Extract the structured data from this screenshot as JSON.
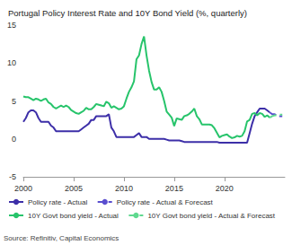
{
  "chart_data": {
    "type": "line",
    "title": "Portugal Policy Interest Rate and 10Y Bond Yield (%, quarterly)",
    "source": "Source: Refinitiv, Capital Economics",
    "legend": "bottom",
    "grid": false,
    "xlim": [
      2000,
      2026
    ],
    "xticks": [
      2000,
      2005,
      2010,
      2015,
      2020
    ],
    "ylim": [
      -5,
      15
    ],
    "yticks": [
      -5,
      0,
      5,
      10,
      15
    ],
    "x": [
      2000,
      2000.25,
      2000.5,
      2000.75,
      2001,
      2001.25,
      2001.5,
      2001.75,
      2002,
      2002.25,
      2002.5,
      2002.75,
      2003,
      2003.25,
      2003.5,
      2003.75,
      2004,
      2004.25,
      2004.5,
      2004.75,
      2005,
      2005.25,
      2005.5,
      2005.75,
      2006,
      2006.25,
      2006.5,
      2006.75,
      2007,
      2007.25,
      2007.5,
      2007.75,
      2008,
      2008.25,
      2008.5,
      2008.75,
      2009,
      2009.25,
      2009.5,
      2009.75,
      2010,
      2010.25,
      2010.5,
      2010.75,
      2011,
      2011.25,
      2011.5,
      2011.75,
      2012,
      2012.25,
      2012.5,
      2012.75,
      2013,
      2013.25,
      2013.5,
      2013.75,
      2014,
      2014.25,
      2014.5,
      2014.75,
      2015,
      2015.25,
      2015.5,
      2015.75,
      2016,
      2016.25,
      2016.5,
      2016.75,
      2017,
      2017.25,
      2017.5,
      2017.75,
      2018,
      2018.25,
      2018.5,
      2018.75,
      2019,
      2019.25,
      2019.5,
      2019.75,
      2020,
      2020.25,
      2020.5,
      2020.75,
      2021,
      2021.25,
      2021.5,
      2021.75,
      2022,
      2022.25,
      2022.5,
      2022.75,
      2023,
      2023.25,
      2023.5,
      2023.75,
      2024,
      2024.25,
      2024.5,
      2024.75,
      2025,
      2025.25,
      2025.5,
      2025.75
    ],
    "series": [
      {
        "name": "Policy rate - Actual",
        "color": "#3d2fa8",
        "line_style": "solid",
        "values": [
          2.25,
          2.75,
          3.5,
          3.75,
          3.75,
          3.5,
          2.75,
          2.25,
          2.25,
          2.25,
          2.25,
          1.75,
          1.5,
          1.0,
          1.0,
          1.0,
          1.0,
          1.0,
          1.0,
          1.0,
          1.0,
          1.0,
          1.0,
          1.25,
          1.5,
          1.75,
          2.0,
          2.5,
          2.5,
          3.0,
          3.0,
          3.0,
          3.0,
          3.0,
          3.25,
          1.5,
          1.0,
          0.25,
          0.25,
          0.25,
          0.25,
          0.25,
          0.25,
          0.25,
          0.25,
          0.5,
          0.75,
          0.25,
          0.25,
          0.25,
          0,
          0,
          0,
          0,
          0,
          0,
          0,
          -0.1,
          -0.2,
          -0.2,
          -0.2,
          -0.2,
          -0.2,
          -0.3,
          -0.4,
          -0.4,
          -0.4,
          -0.4,
          -0.4,
          -0.4,
          -0.4,
          -0.4,
          -0.4,
          -0.4,
          -0.4,
          -0.4,
          -0.4,
          -0.4,
          -0.5,
          -0.5,
          -0.5,
          -0.5,
          -0.5,
          -0.5,
          -0.5,
          -0.5,
          -0.5,
          -0.5,
          -0.5,
          -0.5,
          0.75,
          2.0,
          3.0,
          3.5,
          4.0,
          4.0,
          4.0,
          3.75,
          3.5,
          null,
          null,
          null,
          null,
          null
        ]
      },
      {
        "name": "Policy rate - Actual & Forecast",
        "color": "#5a4ecf",
        "line_style": "dashed",
        "values": [
          null,
          null,
          null,
          null,
          null,
          null,
          null,
          null,
          null,
          null,
          null,
          null,
          null,
          null,
          null,
          null,
          null,
          null,
          null,
          null,
          null,
          null,
          null,
          null,
          null,
          null,
          null,
          null,
          null,
          null,
          null,
          null,
          null,
          null,
          null,
          null,
          null,
          null,
          null,
          null,
          null,
          null,
          null,
          null,
          null,
          null,
          null,
          null,
          null,
          null,
          null,
          null,
          null,
          null,
          null,
          null,
          null,
          null,
          null,
          null,
          null,
          null,
          null,
          null,
          null,
          null,
          null,
          null,
          null,
          null,
          null,
          null,
          null,
          null,
          null,
          null,
          null,
          null,
          null,
          null,
          null,
          null,
          null,
          null,
          null,
          null,
          null,
          null,
          null,
          null,
          null,
          null,
          null,
          null,
          null,
          null,
          null,
          null,
          3.5,
          3.25,
          3.25,
          3.0,
          3.0,
          3.0
        ]
      },
      {
        "name": "10Y Govt bond yield - Actual",
        "color": "#27c46b",
        "line_style": "solid",
        "values": [
          5.6,
          5.5,
          5.5,
          5.3,
          5.1,
          5.3,
          5.2,
          5.0,
          5.2,
          5.3,
          4.8,
          4.6,
          4.2,
          4.0,
          4.2,
          4.4,
          4.2,
          4.4,
          4.2,
          3.8,
          3.6,
          3.4,
          3.3,
          3.5,
          3.7,
          4.1,
          3.9,
          3.9,
          4.2,
          4.6,
          4.5,
          4.4,
          4.3,
          4.9,
          4.7,
          4.1,
          4.3,
          4.1,
          3.9,
          4.0,
          4.3,
          5.3,
          6.2,
          6.8,
          7.6,
          10.5,
          11.0,
          12.5,
          13.5,
          11.0,
          9.0,
          7.5,
          6.5,
          6.5,
          6.8,
          6.2,
          5.0,
          3.6,
          3.2,
          2.8,
          1.7,
          2.7,
          2.6,
          2.5,
          3.0,
          3.1,
          3.3,
          3.6,
          4.0,
          3.0,
          2.6,
          1.9,
          1.9,
          1.9,
          1.9,
          1.8,
          1.4,
          0.8,
          0.2,
          0.4,
          0.5,
          0.6,
          0.3,
          0.1,
          0.2,
          0.4,
          0.3,
          0.4,
          1.0,
          2.3,
          2.5,
          3.3,
          3.4,
          3.1,
          3.4,
          3.3,
          2.9,
          3.1,
          2.8,
          null,
          null,
          null,
          null,
          null
        ]
      },
      {
        "name": "10Y Govt bond yield - Actual & Forecast",
        "color": "#5fd98f",
        "line_style": "dashed",
        "values": [
          null,
          null,
          null,
          null,
          null,
          null,
          null,
          null,
          null,
          null,
          null,
          null,
          null,
          null,
          null,
          null,
          null,
          null,
          null,
          null,
          null,
          null,
          null,
          null,
          null,
          null,
          null,
          null,
          null,
          null,
          null,
          null,
          null,
          null,
          null,
          null,
          null,
          null,
          null,
          null,
          null,
          null,
          null,
          null,
          null,
          null,
          null,
          null,
          null,
          null,
          null,
          null,
          null,
          null,
          null,
          null,
          null,
          null,
          null,
          null,
          null,
          null,
          null,
          null,
          null,
          null,
          null,
          null,
          null,
          null,
          null,
          null,
          null,
          null,
          null,
          null,
          null,
          null,
          null,
          null,
          null,
          null,
          null,
          null,
          null,
          null,
          null,
          null,
          null,
          null,
          null,
          null,
          null,
          null,
          null,
          null,
          null,
          null,
          2.8,
          3.0,
          3.1,
          3.1,
          3.2,
          3.2
        ]
      }
    ]
  }
}
